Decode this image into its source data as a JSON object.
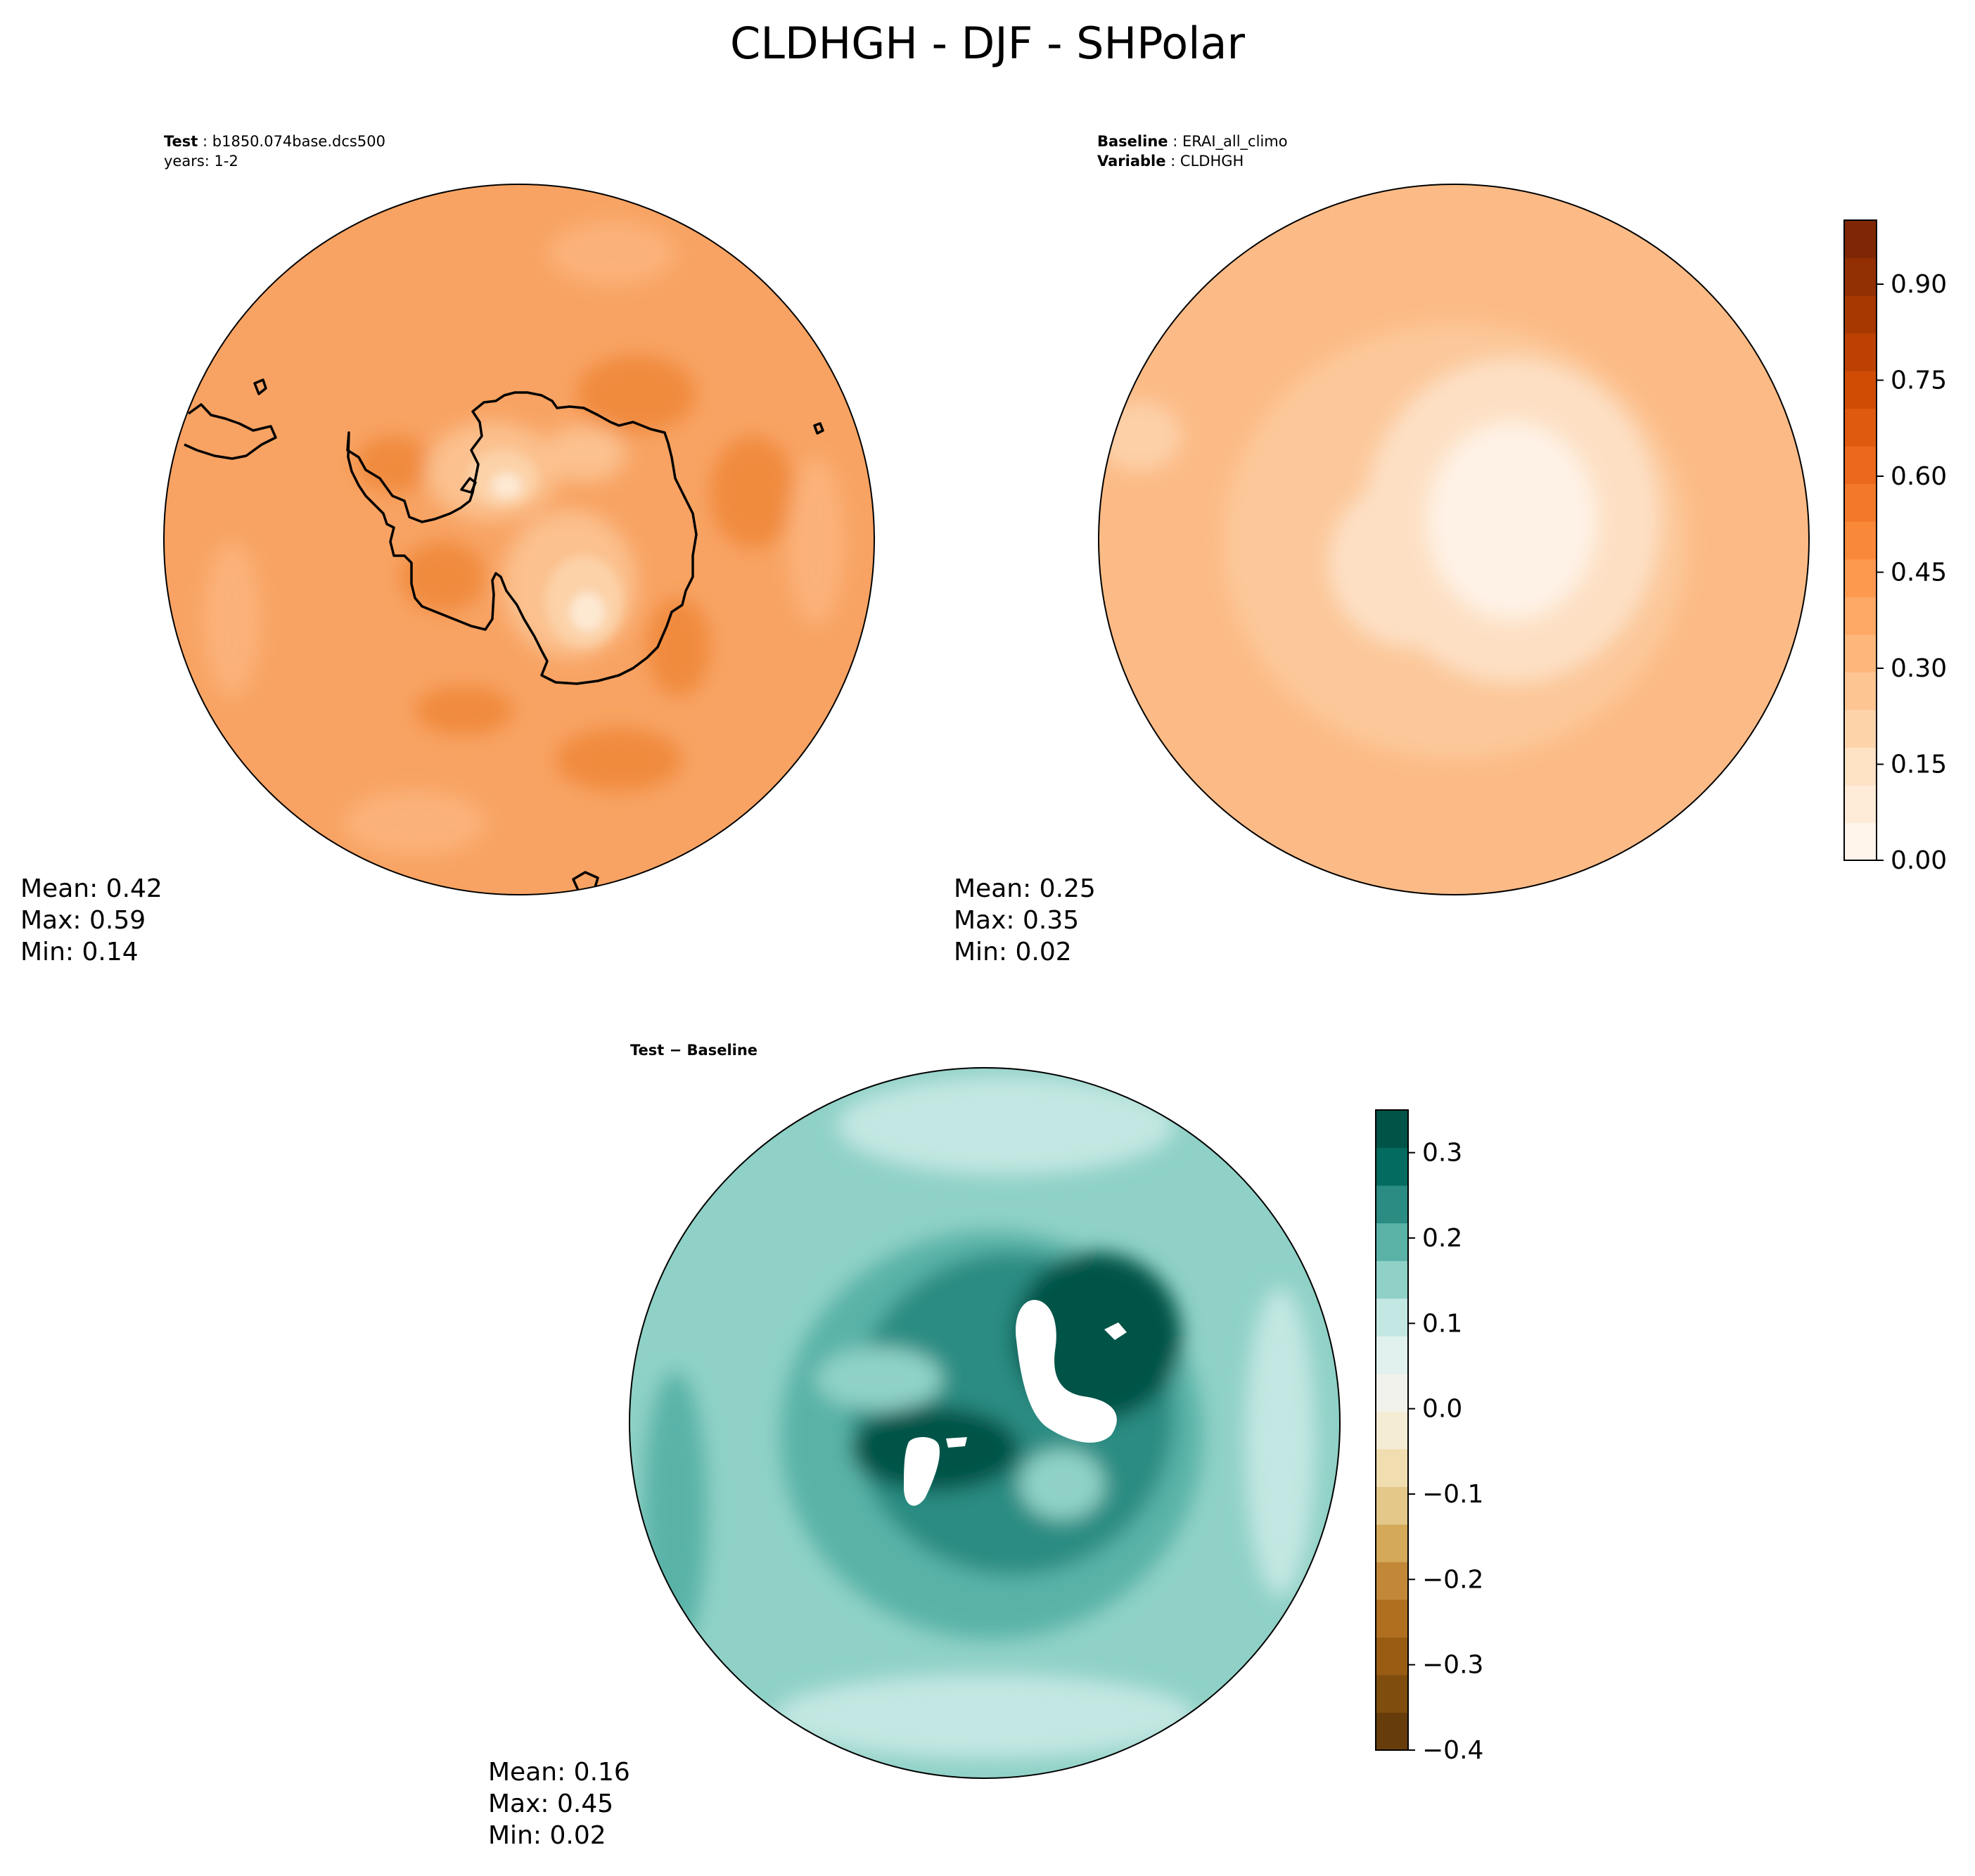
{
  "figure_title": "CLDHGH - DJF - SHPolar",
  "colors": {
    "test_base": "#f8a363",
    "test_dark": "#f08a3c",
    "test_light": "#fcd2a8",
    "test_lightest": "#fde8d2",
    "baseline_base": "#fcbb86",
    "baseline_light": "#fde0c4",
    "baseline_lightest": "#fef2e6",
    "diff_base": "#8fd1c6",
    "diff_mid": "#5ab2a7",
    "diff_dark": "#2b8c83",
    "diff_darkest": "#005347",
    "diff_light": "#c3e7e2"
  },
  "chart_data": [
    {
      "type": "heatmap",
      "projection": "south polar stereographic",
      "title_label": "Test",
      "title_value": "b1850.074base.dcs500",
      "subtitle": "years: 1-2",
      "stats": {
        "mean_label": "Mean:",
        "mean": "0.42",
        "max_label": "Max:",
        "max": "0.59",
        "min_label": "Min:",
        "min": "0.14"
      },
      "colormap": "Oranges"
    },
    {
      "type": "heatmap",
      "projection": "south polar stereographic",
      "title_label": "Baseline",
      "title_value": "ERAI_all_climo",
      "variable_label": "Variable",
      "variable_value": "CLDHGH",
      "stats": {
        "mean_label": "Mean:",
        "mean": "0.25",
        "max_label": "Max:",
        "max": "0.35",
        "min_label": "Min:",
        "min": "0.02"
      },
      "colormap": "Oranges",
      "colorbar": {
        "range": [
          0.0,
          1.0
        ],
        "tick_values": [
          0.0,
          0.15,
          0.3,
          0.45,
          0.6,
          0.75,
          0.9
        ],
        "tick_labels": [
          "0.00",
          "0.15",
          "0.30",
          "0.45",
          "0.60",
          "0.75",
          "0.90"
        ],
        "colors": [
          "#fff5eb",
          "#feebd8",
          "#fee2c4",
          "#fdd4aa",
          "#fdc591",
          "#fdb77b",
          "#fda864",
          "#fd984f",
          "#fa8839",
          "#f3782a",
          "#eb681c",
          "#df5a0f",
          "#d04c05",
          "#bd4102",
          "#a83802",
          "#933003",
          "#7f2704"
        ]
      }
    },
    {
      "type": "heatmap",
      "projection": "south polar stereographic",
      "title_label": "Test − Baseline",
      "stats": {
        "mean_label": "Mean:",
        "mean": "0.16",
        "max_label": "Max:",
        "max": "0.45",
        "min_label": "Min:",
        "min": "0.02"
      },
      "colormap": "BrBG",
      "colorbar": {
        "range": [
          -0.4,
          0.35
        ],
        "tick_values": [
          0.3,
          0.2,
          0.1,
          0.0,
          -0.1,
          -0.2,
          -0.3,
          -0.4
        ],
        "tick_labels": [
          "0.3",
          "0.2",
          "0.1",
          "0.0",
          "−0.1",
          "−0.2",
          "−0.3",
          "−0.4"
        ],
        "colors": [
          "#663d0a",
          "#7f4d0e",
          "#995c12",
          "#b06f1f",
          "#c28838",
          "#d4a95a",
          "#e3c889",
          "#f0ddb0",
          "#f5ecd5",
          "#f2f2ed",
          "#e0f1ee",
          "#c3e7e2",
          "#8fd1c6",
          "#5ab2a7",
          "#2b8c83",
          "#046b60",
          "#005347"
        ]
      }
    }
  ]
}
